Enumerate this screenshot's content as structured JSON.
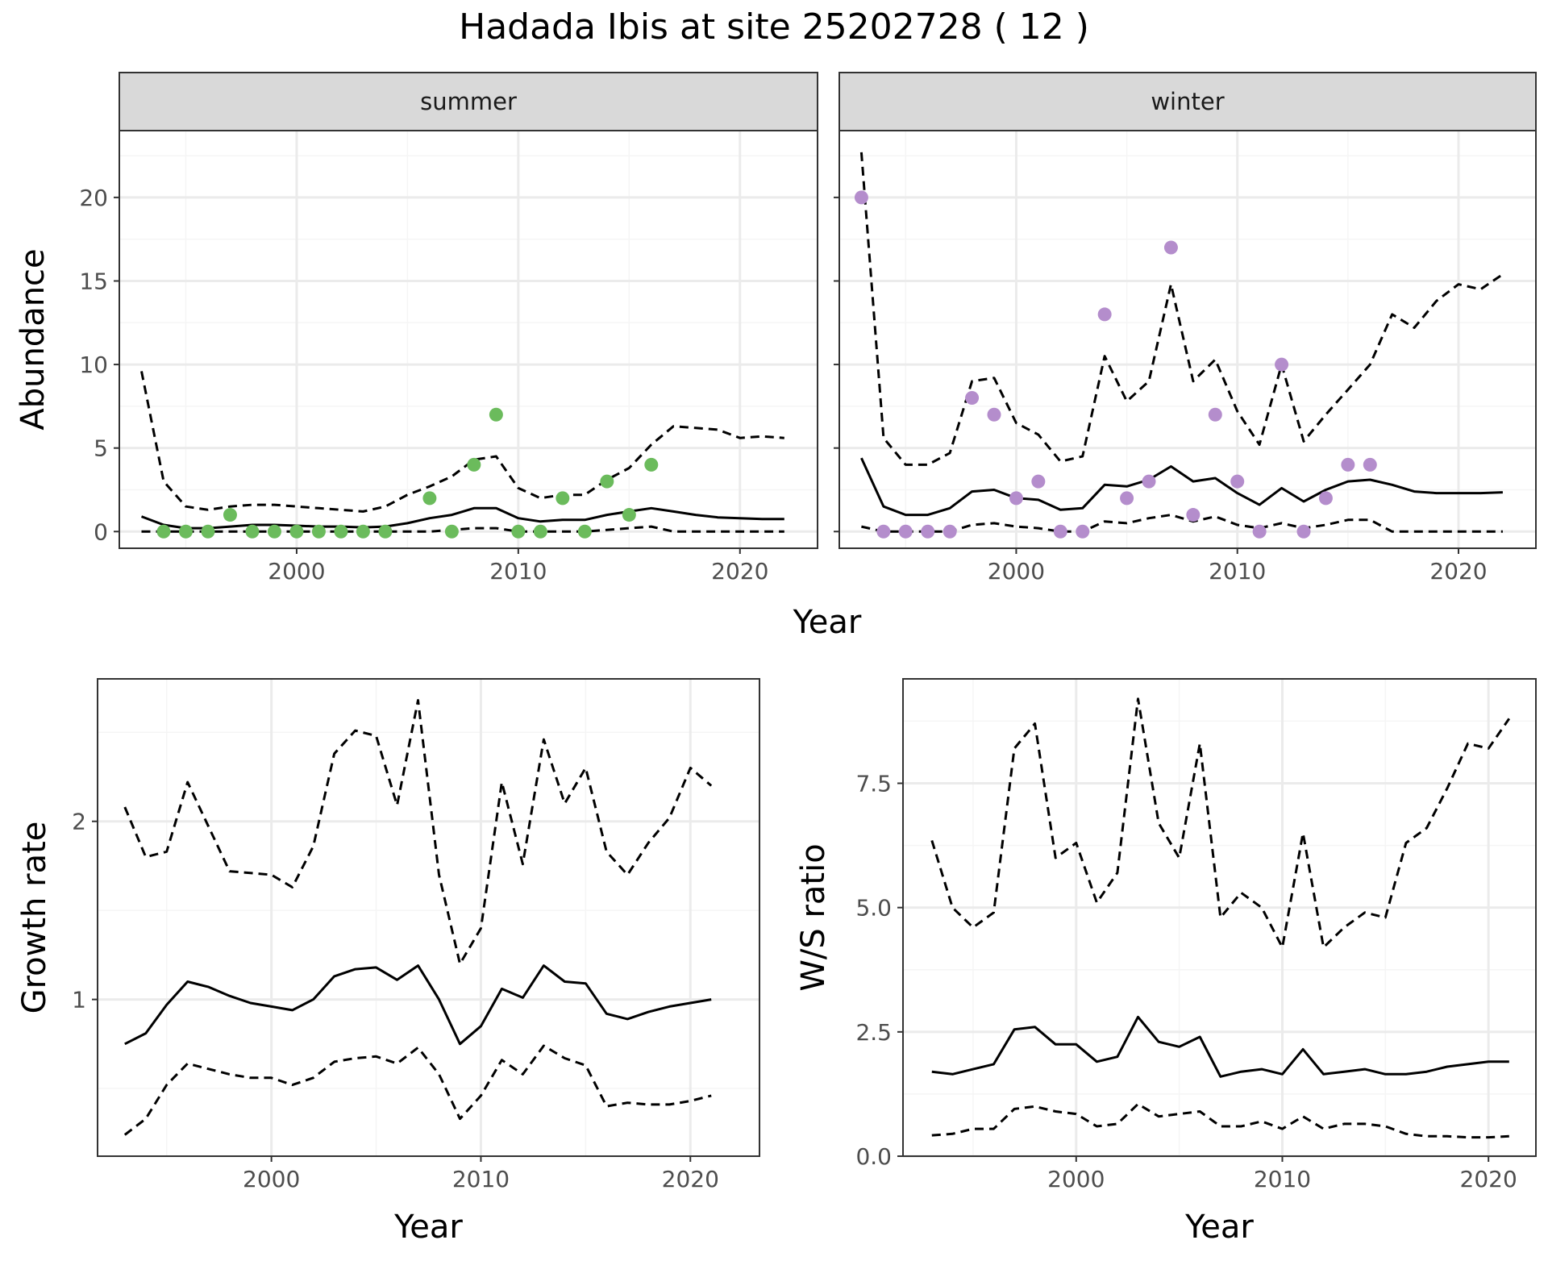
{
  "title": "Hadada Ibis at site 25202728 ( 12 )",
  "colors": {
    "summer_points": "#6BBB5C",
    "winter_points": "#B48DCC",
    "lines": "#000000",
    "grid_major": "#EBEBEB",
    "grid_minor": "#F5F5F5",
    "strip_fill": "#D9D9D9",
    "panel_border": "#333333"
  },
  "chart_data": [
    {
      "type": "scatter",
      "facet": "summer",
      "xlabel": "Year",
      "ylabel": "Abundance",
      "xlim": [
        1992,
        2023.5
      ],
      "ylim": [
        -1,
        24
      ],
      "x_ticks": [
        2000,
        2010,
        2020
      ],
      "y_ticks": [
        0,
        5,
        10,
        15,
        20
      ],
      "grid": true,
      "points": {
        "x": [
          1994,
          1995,
          1996,
          1997,
          1998,
          1999,
          2000,
          2001,
          2002,
          2003,
          2004,
          2006,
          2007,
          2008,
          2009,
          2010,
          2011,
          2012,
          2013,
          2014,
          2015,
          2016
        ],
        "y": [
          0,
          0,
          0,
          1,
          0,
          0,
          0,
          0,
          0,
          0,
          0,
          2,
          0,
          4,
          7,
          0,
          0,
          2,
          0,
          3,
          1,
          4
        ]
      },
      "series": [
        {
          "style": "solid",
          "x": [
            1993,
            1994,
            1995,
            1996,
            1997,
            1998,
            1999,
            2000,
            2001,
            2002,
            2003,
            2004,
            2005,
            2006,
            2007,
            2008,
            2009,
            2010,
            2011,
            2012,
            2013,
            2014,
            2015,
            2016,
            2017,
            2018,
            2019,
            2020,
            2021,
            2022
          ],
          "y": [
            0.9,
            0.4,
            0.2,
            0.2,
            0.3,
            0.4,
            0.4,
            0.35,
            0.3,
            0.3,
            0.25,
            0.3,
            0.5,
            0.8,
            1.0,
            1.4,
            1.4,
            0.8,
            0.6,
            0.7,
            0.7,
            1.0,
            1.2,
            1.4,
            1.2,
            1.0,
            0.85,
            0.8,
            0.75,
            0.75
          ]
        },
        {
          "style": "dashed",
          "x": [
            1993,
            1994,
            1995,
            1996,
            1997,
            1998,
            1999,
            2000,
            2001,
            2002,
            2003,
            2004,
            2005,
            2006,
            2007,
            2008,
            2009,
            2010,
            2011,
            2012,
            2013,
            2014,
            2015,
            2016,
            2017,
            2018,
            2019,
            2020,
            2021,
            2022
          ],
          "y": [
            9.6,
            3.0,
            1.5,
            1.3,
            1.5,
            1.6,
            1.6,
            1.5,
            1.4,
            1.3,
            1.2,
            1.5,
            2.2,
            2.7,
            3.3,
            4.3,
            4.5,
            2.6,
            2.0,
            2.2,
            2.2,
            3.1,
            3.8,
            5.2,
            6.3,
            6.2,
            6.1,
            5.6,
            5.7,
            5.6
          ]
        },
        {
          "style": "dashed",
          "x": [
            1993,
            1994,
            1995,
            1996,
            1997,
            1998,
            1999,
            2000,
            2001,
            2002,
            2003,
            2004,
            2005,
            2006,
            2007,
            2008,
            2009,
            2010,
            2011,
            2012,
            2013,
            2014,
            2015,
            2016,
            2017,
            2018,
            2019,
            2020,
            2021,
            2022
          ],
          "y": [
            0,
            0,
            0,
            0,
            0,
            0,
            0,
            0,
            0,
            0,
            0,
            0,
            0,
            0,
            0.1,
            0.2,
            0.2,
            0,
            0,
            0,
            0,
            0.1,
            0.2,
            0.3,
            0,
            0,
            0,
            0,
            0,
            0
          ]
        }
      ]
    },
    {
      "type": "scatter",
      "facet": "winter",
      "xlabel": "Year",
      "ylabel": "Abundance",
      "xlim": [
        1992,
        2023.5
      ],
      "ylim": [
        -1,
        24
      ],
      "x_ticks": [
        2000,
        2010,
        2020
      ],
      "y_ticks": [
        0,
        5,
        10,
        15,
        20
      ],
      "grid": true,
      "points": {
        "x": [
          1993,
          1994,
          1995,
          1996,
          1997,
          1998,
          1999,
          2000,
          2001,
          2002,
          2003,
          2004,
          2005,
          2006,
          2007,
          2008,
          2009,
          2010,
          2011,
          2012,
          2013,
          2014,
          2015,
          2016
        ],
        "y": [
          20,
          0,
          0,
          0,
          0,
          8,
          7,
          2,
          3,
          0,
          0,
          13,
          2,
          3,
          17,
          1,
          7,
          3,
          0,
          10,
          0,
          2,
          4,
          4
        ]
      },
      "series": [
        {
          "style": "solid",
          "x": [
            1993,
            1994,
            1995,
            1996,
            1997,
            1998,
            1999,
            2000,
            2001,
            2002,
            2003,
            2004,
            2005,
            2006,
            2007,
            2008,
            2009,
            2010,
            2011,
            2012,
            2013,
            2014,
            2015,
            2016,
            2017,
            2018,
            2019,
            2020,
            2021,
            2022
          ],
          "y": [
            4.4,
            1.5,
            1.0,
            1.0,
            1.4,
            2.4,
            2.5,
            2.0,
            1.9,
            1.3,
            1.4,
            2.8,
            2.7,
            3.1,
            3.9,
            3.0,
            3.2,
            2.3,
            1.6,
            2.6,
            1.8,
            2.5,
            3.0,
            3.1,
            2.8,
            2.4,
            2.3,
            2.3,
            2.3,
            2.35
          ]
        },
        {
          "style": "dashed",
          "x": [
            1993,
            1994,
            1995,
            1996,
            1997,
            1998,
            1999,
            2000,
            2001,
            2002,
            2003,
            2004,
            2005,
            2006,
            2007,
            2008,
            2009,
            2010,
            2011,
            2012,
            2013,
            2014,
            2015,
            2016,
            2017,
            2018,
            2019,
            2020,
            2021,
            2022
          ],
          "y": [
            22.7,
            5.6,
            4.0,
            4.0,
            4.7,
            9.0,
            9.2,
            6.5,
            5.8,
            4.2,
            4.5,
            10.5,
            7.8,
            9.0,
            14.8,
            9.0,
            10.3,
            7.2,
            5.2,
            10.0,
            5.4,
            7.0,
            8.5,
            10.0,
            13.0,
            12.2,
            13.8,
            14.8,
            14.5,
            15.4
          ]
        },
        {
          "style": "dashed",
          "x": [
            1993,
            1994,
            1995,
            1996,
            1997,
            1998,
            1999,
            2000,
            2001,
            2002,
            2003,
            2004,
            2005,
            2006,
            2007,
            2008,
            2009,
            2010,
            2011,
            2012,
            2013,
            2014,
            2015,
            2016,
            2017,
            2018,
            2019,
            2020,
            2021,
            2022
          ],
          "y": [
            0.3,
            0,
            0,
            0,
            0,
            0.4,
            0.5,
            0.3,
            0.2,
            0,
            0,
            0.6,
            0.5,
            0.8,
            1.0,
            0.6,
            0.9,
            0.4,
            0.2,
            0.5,
            0.2,
            0.4,
            0.7,
            0.7,
            0,
            0,
            0,
            0,
            0,
            0
          ]
        }
      ]
    },
    {
      "type": "line",
      "xlabel": "Year",
      "ylabel": "Growth rate",
      "xlim": [
        1991.7,
        2023.3
      ],
      "ylim": [
        0.12,
        2.8
      ],
      "x_ticks": [
        2000,
        2010,
        2020
      ],
      "y_ticks": [
        1,
        2
      ],
      "grid": true,
      "series": [
        {
          "style": "solid",
          "x": [
            1993,
            1994,
            1995,
            1996,
            1997,
            1998,
            1999,
            2000,
            2001,
            2002,
            2003,
            2004,
            2005,
            2006,
            2007,
            2008,
            2009,
            2010,
            2011,
            2012,
            2013,
            2014,
            2015,
            2016,
            2017,
            2018,
            2019,
            2020,
            2021
          ],
          "y": [
            0.75,
            0.81,
            0.97,
            1.1,
            1.07,
            1.02,
            0.98,
            0.96,
            0.94,
            1.0,
            1.13,
            1.17,
            1.18,
            1.11,
            1.19,
            1.0,
            0.75,
            0.85,
            1.06,
            1.01,
            1.19,
            1.1,
            1.09,
            0.92,
            0.89,
            0.93,
            0.96,
            0.98,
            1.0
          ]
        },
        {
          "style": "dashed",
          "x": [
            1993,
            1994,
            1995,
            1996,
            1997,
            1998,
            1999,
            2000,
            2001,
            2002,
            2003,
            2004,
            2005,
            2006,
            2007,
            2008,
            2009,
            2010,
            2011,
            2012,
            2013,
            2014,
            2015,
            2016,
            2017,
            2018,
            2019,
            2020,
            2021
          ],
          "y": [
            2.08,
            1.8,
            1.83,
            2.22,
            1.97,
            1.72,
            1.71,
            1.7,
            1.63,
            1.86,
            2.38,
            2.51,
            2.48,
            2.09,
            2.68,
            1.7,
            1.2,
            1.4,
            2.22,
            1.76,
            2.46,
            2.1,
            2.3,
            1.83,
            1.7,
            1.88,
            2.02,
            2.3,
            2.2
          ]
        },
        {
          "style": "dashed",
          "x": [
            1993,
            1994,
            1995,
            1996,
            1997,
            1998,
            1999,
            2000,
            2001,
            2002,
            2003,
            2004,
            2005,
            2006,
            2007,
            2008,
            2009,
            2010,
            2011,
            2012,
            2013,
            2014,
            2015,
            2016,
            2017,
            2018,
            2019,
            2020,
            2021
          ],
          "y": [
            0.24,
            0.33,
            0.52,
            0.64,
            0.61,
            0.58,
            0.56,
            0.56,
            0.52,
            0.56,
            0.65,
            0.67,
            0.68,
            0.64,
            0.73,
            0.58,
            0.33,
            0.46,
            0.66,
            0.58,
            0.74,
            0.67,
            0.63,
            0.4,
            0.42,
            0.41,
            0.41,
            0.43,
            0.46
          ]
        }
      ]
    },
    {
      "type": "line",
      "xlabel": "Year",
      "ylabel": "W/S ratio",
      "xlim": [
        1991.6,
        2022.3
      ],
      "ylim": [
        0,
        9.6
      ],
      "x_ticks": [
        2000,
        2010,
        2020
      ],
      "y_ticks": [
        0.0,
        2.5,
        5.0,
        7.5
      ],
      "grid": true,
      "series": [
        {
          "style": "solid",
          "x": [
            1993,
            1994,
            1995,
            1996,
            1997,
            1998,
            1999,
            2000,
            2001,
            2002,
            2003,
            2004,
            2005,
            2006,
            2007,
            2008,
            2009,
            2010,
            2011,
            2012,
            2013,
            2014,
            2015,
            2016,
            2017,
            2018,
            2019,
            2020,
            2021
          ],
          "y": [
            1.7,
            1.65,
            1.75,
            1.85,
            2.55,
            2.6,
            2.25,
            2.25,
            1.9,
            2.0,
            2.8,
            2.3,
            2.2,
            2.4,
            1.6,
            1.7,
            1.75,
            1.65,
            2.15,
            1.65,
            1.7,
            1.75,
            1.65,
            1.65,
            1.7,
            1.8,
            1.85,
            1.9,
            1.9
          ]
        },
        {
          "style": "dashed",
          "x": [
            1993,
            1994,
            1995,
            1996,
            1997,
            1998,
            1999,
            2000,
            2001,
            2002,
            2003,
            2004,
            2005,
            2006,
            2007,
            2008,
            2009,
            2010,
            2011,
            2012,
            2013,
            2014,
            2015,
            2016,
            2017,
            2018,
            2019,
            2020,
            2021
          ],
          "y": [
            6.35,
            5.0,
            4.6,
            4.9,
            8.2,
            8.7,
            6.0,
            6.3,
            5.1,
            5.7,
            9.2,
            6.7,
            6.0,
            8.3,
            4.8,
            5.3,
            5.0,
            4.2,
            6.5,
            4.2,
            4.6,
            4.9,
            4.8,
            6.3,
            6.6,
            7.4,
            8.3,
            8.2,
            8.8
          ]
        },
        {
          "style": "dashed",
          "x": [
            1993,
            1994,
            1995,
            1996,
            1997,
            1998,
            1999,
            2000,
            2001,
            2002,
            2003,
            2004,
            2005,
            2006,
            2007,
            2008,
            2009,
            2010,
            2011,
            2012,
            2013,
            2014,
            2015,
            2016,
            2017,
            2018,
            2019,
            2020,
            2021
          ],
          "y": [
            0.42,
            0.45,
            0.55,
            0.55,
            0.95,
            1.0,
            0.9,
            0.85,
            0.6,
            0.65,
            1.05,
            0.8,
            0.85,
            0.9,
            0.6,
            0.6,
            0.7,
            0.55,
            0.8,
            0.55,
            0.65,
            0.65,
            0.6,
            0.45,
            0.4,
            0.4,
            0.38,
            0.38,
            0.4
          ]
        }
      ]
    }
  ]
}
